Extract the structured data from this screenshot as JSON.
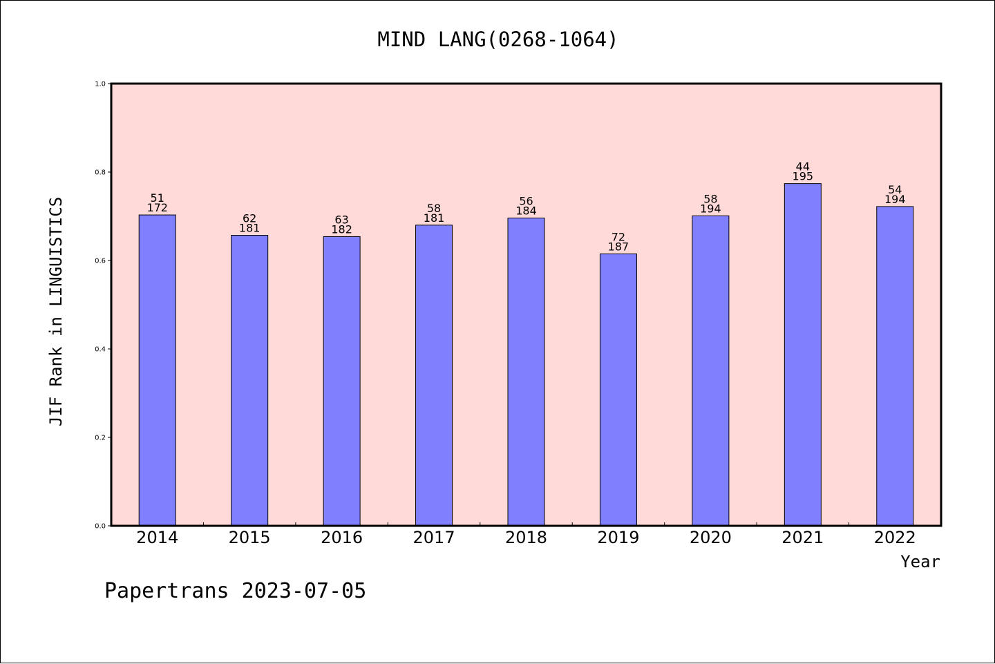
{
  "chart_data": {
    "type": "bar",
    "title": "MIND LANG(0268-1064)",
    "xlabel": "Year",
    "ylabel": "JIF Rank in LINGUISTICS",
    "ylim": [
      0,
      1.0
    ],
    "yticks": [
      "0.0",
      "0.2",
      "0.4",
      "0.6",
      "0.8",
      "1.0"
    ],
    "categories": [
      "2014",
      "2015",
      "2016",
      "2017",
      "2018",
      "2019",
      "2020",
      "2021",
      "2022"
    ],
    "values": [
      0.703,
      0.657,
      0.654,
      0.68,
      0.696,
      0.615,
      0.701,
      0.774,
      0.722
    ],
    "labels_top": [
      "51",
      "62",
      "63",
      "58",
      "56",
      "72",
      "58",
      "44",
      "54"
    ],
    "labels_bottom": [
      "172",
      "181",
      "182",
      "181",
      "184",
      "187",
      "194",
      "195",
      "194"
    ],
    "grid": false,
    "colors": {
      "plot_background": "#ffdad8",
      "bar_fill": "#8080ff",
      "bar_stroke": "#000000"
    }
  },
  "footer": {
    "text": "Papertrans 2023-07-05"
  }
}
